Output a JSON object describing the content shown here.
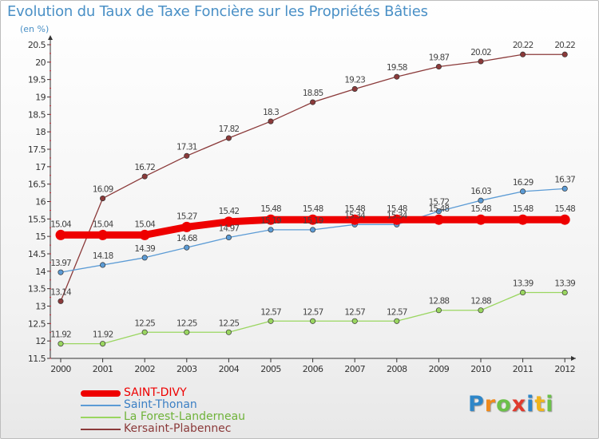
{
  "title": "Evolution du Taux de Taxe Foncière sur les Propriétés Bâties",
  "unit": "(en %)",
  "logo": {
    "letters": [
      "P",
      "r",
      "o",
      "x",
      "i",
      "t",
      "i"
    ],
    "colors": [
      "#2e86c8",
      "#f08a1c",
      "#6cc04a",
      "#e03a2e",
      "#2e86c8",
      "#f0b41c",
      "#6cc04a"
    ]
  },
  "chart_data": {
    "type": "line",
    "x": [
      "2000",
      "2001",
      "2002",
      "2003",
      "2004",
      "2005",
      "2006",
      "2007",
      "2008",
      "2009",
      "2010",
      "2011",
      "2012"
    ],
    "ylim": [
      11.5,
      20.5
    ],
    "yticks": [
      "11.5",
      "12",
      "12.5",
      "13",
      "13.5",
      "14",
      "14.5",
      "15",
      "15.5",
      "16",
      "16.5",
      "17",
      "17.5",
      "18",
      "18.5",
      "19",
      "19.5",
      "20",
      "20.5"
    ],
    "grid": false,
    "legend_position": "bottom-left",
    "series": [
      {
        "name": "SAINT-DIVY",
        "color": "#ee0000",
        "values": [
          15.04,
          15.04,
          15.04,
          15.27,
          15.42,
          15.48,
          15.48,
          15.48,
          15.48,
          15.48,
          15.48,
          15.48,
          15.48
        ],
        "labels": [
          "15.04",
          "15.04",
          "15.04",
          "15.27",
          "15.42",
          "15.48",
          "15.48",
          "15.48",
          "15.48",
          "15.48",
          "15.48",
          "15.48",
          "15.48"
        ]
      },
      {
        "name": "Saint-Thonan",
        "color": "#5b9bd5",
        "values": [
          13.97,
          14.18,
          14.39,
          14.68,
          14.97,
          15.19,
          15.19,
          15.34,
          15.34,
          15.72,
          16.03,
          16.29,
          16.37
        ],
        "labels": [
          "13.97",
          "14.18",
          "14.39",
          "14.68",
          "14.97",
          "15.19",
          "15.19",
          "15.34",
          "15.34",
          "15.72",
          "16.03",
          "16.29",
          "16.37"
        ]
      },
      {
        "name": "La Forest-Landerneau",
        "color": "#9ad660",
        "values": [
          11.92,
          11.92,
          12.25,
          12.25,
          12.25,
          12.57,
          12.57,
          12.57,
          12.57,
          12.88,
          12.88,
          13.39,
          13.39
        ],
        "labels": [
          "11.92",
          "11.92",
          "12.25",
          "12.25",
          "12.25",
          "12.57",
          "12.57",
          "12.57",
          "12.57",
          "12.88",
          "12.88",
          "13.39",
          "13.39"
        ]
      },
      {
        "name": "Kersaint-Plabennec",
        "color": "#8b3a3a",
        "values": [
          13.14,
          16.09,
          16.72,
          17.31,
          17.82,
          18.3,
          18.85,
          19.23,
          19.58,
          19.87,
          20.02,
          20.22,
          20.22
        ],
        "labels": [
          "13.14",
          "16.09",
          "16.72",
          "17.31",
          "17.82",
          "18.3",
          "18.85",
          "19.23",
          "19.58",
          "19.87",
          "20.02",
          "20.22",
          "20.22"
        ]
      }
    ]
  }
}
